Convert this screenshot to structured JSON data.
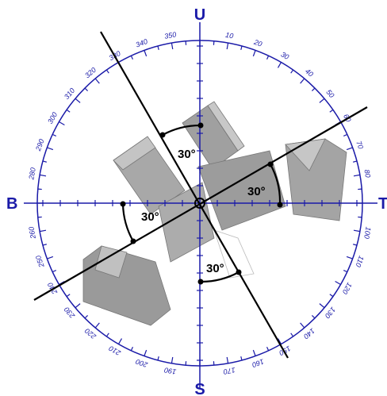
{
  "compass": {
    "cardinals": {
      "north": "U",
      "south": "S",
      "west": "B",
      "east": "T"
    },
    "degrees": [
      10,
      20,
      30,
      40,
      50,
      60,
      70,
      80,
      100,
      110,
      120,
      130,
      140,
      150,
      160,
      170,
      190,
      200,
      210,
      220,
      230,
      240,
      250,
      260,
      280,
      290,
      300,
      310,
      320,
      330,
      340,
      350
    ],
    "angle_labels": [
      "30°",
      "30°",
      "30°",
      "30°"
    ]
  }
}
